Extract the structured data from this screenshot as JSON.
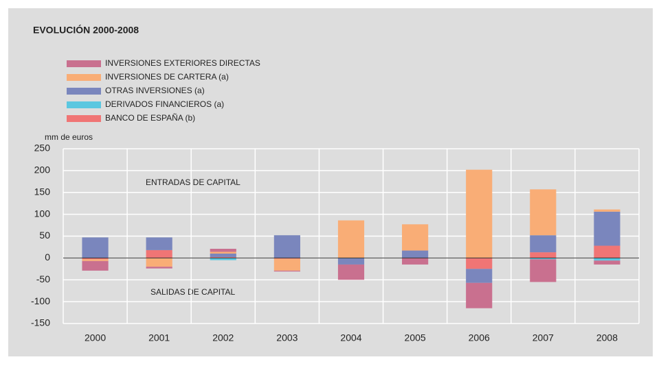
{
  "chart_data": {
    "type": "stacked_bar",
    "title": "EVOLUCIÓN 2000-2008",
    "y_label": "mm de euros",
    "annotations": [
      "ENTRADAS DE CAPITAL",
      "SALIDAS DE CAPITAL"
    ],
    "categories": [
      "2000",
      "2001",
      "2002",
      "2003",
      "2004",
      "2005",
      "2006",
      "2007",
      "2008"
    ],
    "series": [
      {
        "name": "INVERSIONES EXTERIORES DIRECTAS",
        "color": "#c9708f",
        "values": [
          -22,
          -4,
          7,
          -2,
          -35,
          -15,
          -58,
          -52,
          -9
        ]
      },
      {
        "name": "INVERSIONES DE CARTERA (a)",
        "color": "#f9ad76",
        "values": [
          -4,
          -20,
          4,
          -27,
          86,
          60,
          202,
          105,
          5
        ]
      },
      {
        "name": "OTRAS INVERSIONES (a)",
        "color": "#7a86bd",
        "values": [
          47,
          29,
          8,
          52,
          -15,
          17,
          -32,
          39,
          78
        ]
      },
      {
        "name": "DERIVADOS FINANCIEROS (a)",
        "color": "#5bc7e0",
        "values": [
          0,
          0,
          -5,
          0,
          0,
          0,
          0,
          -3,
          -6
        ]
      },
      {
        "name": "BANCO DE ESPAÑA (b)",
        "color": "#f07575",
        "values": [
          -3,
          18,
          2,
          -2,
          0,
          0,
          -25,
          13,
          28
        ]
      }
    ],
    "ylim": [
      -150,
      250
    ],
    "yticks": [
      -150,
      -100,
      -50,
      0,
      50,
      100,
      150,
      200,
      250
    ],
    "grid": true
  }
}
